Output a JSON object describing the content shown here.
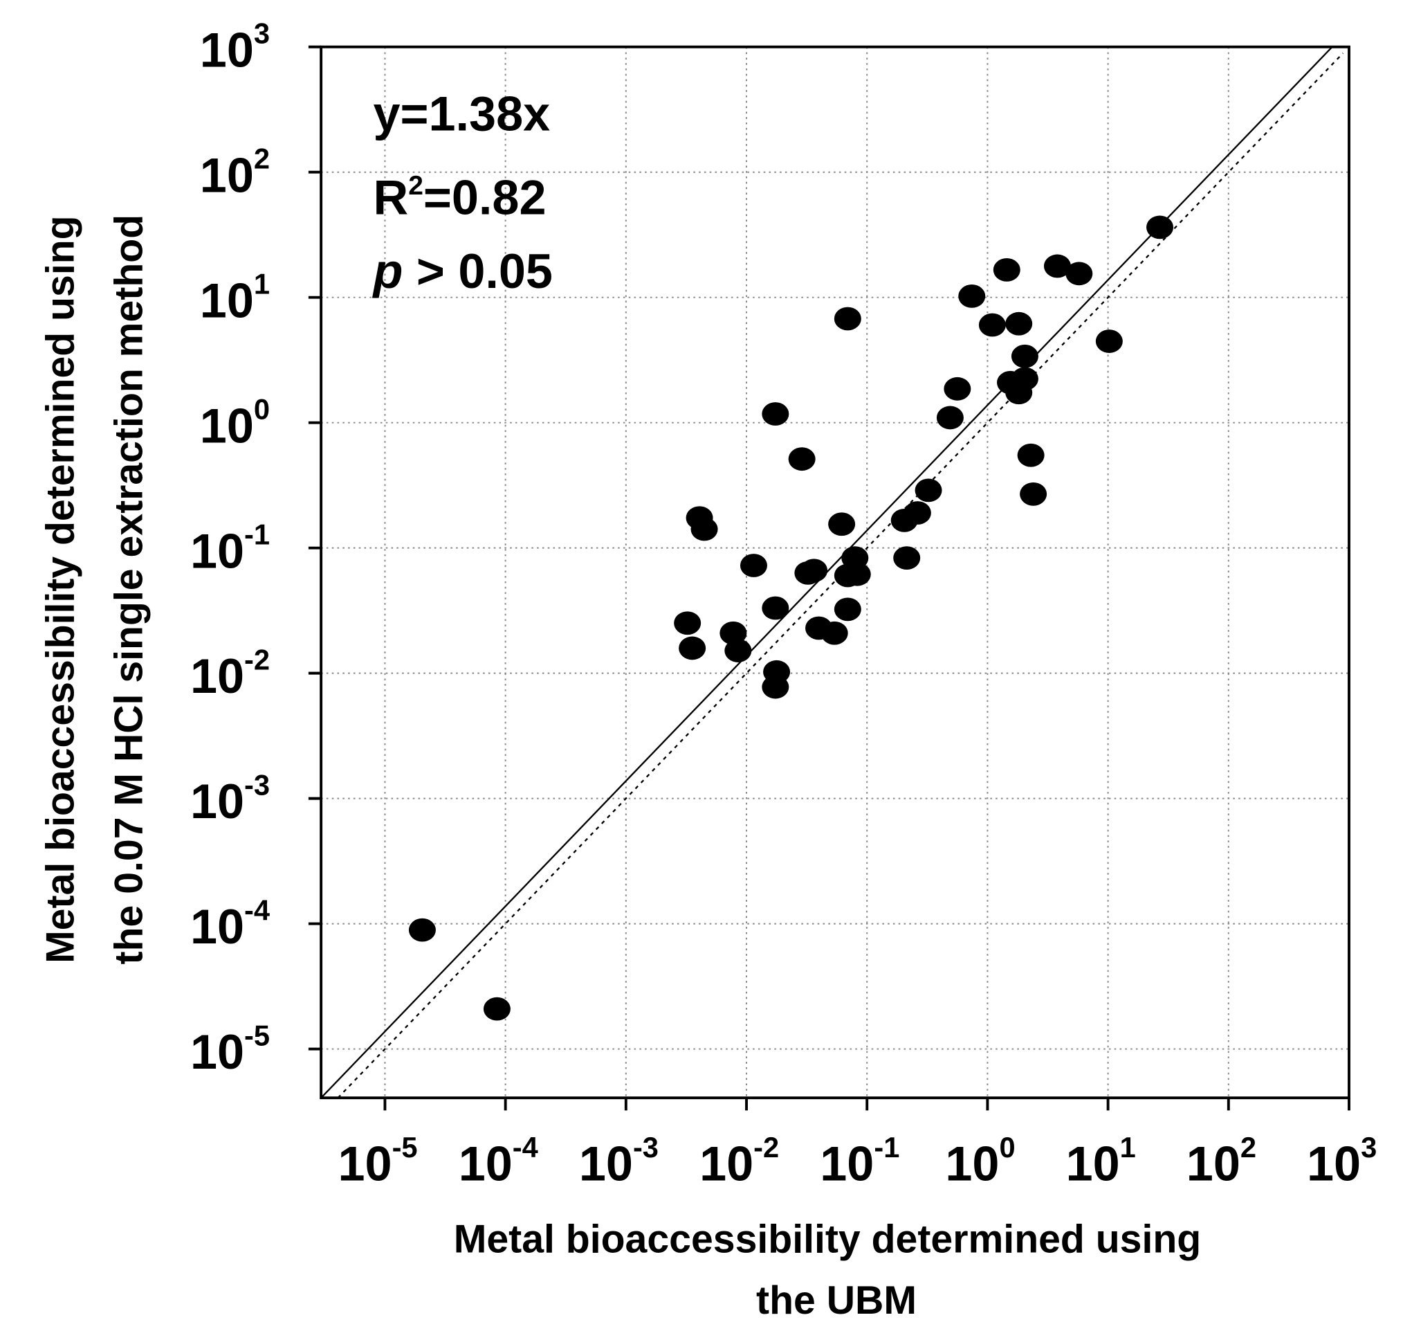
{
  "chart_data": {
    "type": "scatter",
    "xscale": "log",
    "yscale": "log",
    "xlabel_lines": [
      "Metal bioaccessibility determined using",
      "the UBM"
    ],
    "ylabel_lines": [
      "Metal bioaccessibility determined using",
      "the 0.07 M HCl single extraction method"
    ],
    "xlim_log10": [
      -5.53,
      3
    ],
    "ylim_log10": [
      -5.39,
      3
    ],
    "x_tick_exponents": [
      -5,
      -4,
      -3,
      -2,
      -1,
      0,
      1,
      2,
      3
    ],
    "y_tick_exponents": [
      -5,
      -4,
      -3,
      -2,
      -1,
      0,
      1,
      2,
      3
    ],
    "tick_base": "10",
    "grid": true,
    "annotations": {
      "equation": "y=1.38x",
      "r2_prefix": "R",
      "r2_sup": "2",
      "r2_value": "=0.82",
      "p_symbol": "p",
      "p_text": " > 0.05"
    },
    "fit_line": {
      "slope": 1.38,
      "style": "solid"
    },
    "reference_line": {
      "slope": 1,
      "style": "dotted"
    },
    "points_log10": [
      [
        -4.69,
        -4.05
      ],
      [
        -4.07,
        -4.68
      ],
      [
        -2.49,
        -1.6
      ],
      [
        -2.45,
        -1.8
      ],
      [
        -2.39,
        -0.76
      ],
      [
        -2.35,
        -0.85
      ],
      [
        -2.11,
        -1.68
      ],
      [
        -2.07,
        -1.82
      ],
      [
        -1.94,
        -1.14
      ],
      [
        -1.76,
        0.07
      ],
      [
        -1.76,
        -1.48
      ],
      [
        -1.75,
        -1.99
      ],
      [
        -1.76,
        -2.11
      ],
      [
        -1.54,
        -0.29
      ],
      [
        -1.49,
        -1.2
      ],
      [
        -1.44,
        -1.18
      ],
      [
        -1.4,
        -1.64
      ],
      [
        -1.27,
        -1.68
      ],
      [
        -1.21,
        -0.81
      ],
      [
        -1.16,
        0.83
      ],
      [
        -1.16,
        -1.49
      ],
      [
        -1.16,
        -1.22
      ],
      [
        -1.1,
        -1.08
      ],
      [
        -1.08,
        -1.21
      ],
      [
        -0.67,
        -1.08
      ],
      [
        -0.69,
        -0.78
      ],
      [
        -0.58,
        -0.72
      ],
      [
        -0.49,
        -0.54
      ],
      [
        -0.31,
        0.04
      ],
      [
        -0.25,
        0.27
      ],
      [
        -0.13,
        1.01
      ],
      [
        0.04,
        0.78
      ],
      [
        0.16,
        1.22
      ],
      [
        0.19,
        0.32
      ],
      [
        0.26,
        0.79
      ],
      [
        0.26,
        0.24
      ],
      [
        0.31,
        0.53
      ],
      [
        0.31,
        0.35
      ],
      [
        0.36,
        -0.26
      ],
      [
        0.38,
        -0.57
      ],
      [
        0.58,
        1.25
      ],
      [
        0.76,
        1.19
      ],
      [
        1.01,
        0.65
      ],
      [
        1.43,
        1.56
      ]
    ]
  }
}
